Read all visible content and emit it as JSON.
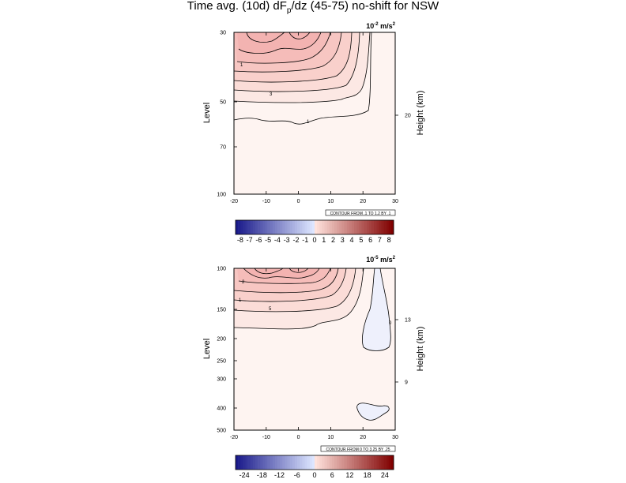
{
  "title_main": "Time avg. (10d) dF",
  "title_sub": "p",
  "title_rest": "/dz (45-75) no-shift for NSW",
  "chart_data": [
    {
      "type": "contour",
      "units_base": "10",
      "units_exp": "-2",
      "units_rest": " m/s",
      "units_sq": "2",
      "ylabel": "Level",
      "y2label": "Height (km)",
      "x_ticks": [
        "-20",
        "-10",
        "0",
        "10",
        "20",
        "30"
      ],
      "y_ticks": [
        "30",
        "50",
        "70",
        "100"
      ],
      "y2_ticks": [
        "20"
      ],
      "contour_info": "CONTOUR FROM .1 TO 1.2 BY .1",
      "contour_labels": [
        "1",
        "3",
        "1"
      ],
      "colorbar_labels": [
        "-8",
        "-7",
        "-6",
        "-5",
        "-4",
        "-3",
        "-2",
        "-1",
        "0",
        "1",
        "2",
        "3",
        "4",
        "5",
        "6",
        "7",
        "8"
      ]
    },
    {
      "type": "contour",
      "units_base": "10",
      "units_exp": "-5",
      "units_rest": " m/s",
      "units_sq": "2",
      "ylabel": "Level",
      "y2label": "Height (km)",
      "x_ticks": [
        "-20",
        "-10",
        "0",
        "10",
        "20",
        "30"
      ],
      "y_ticks": [
        "100",
        "150",
        "200",
        "250",
        "300",
        "400",
        "500"
      ],
      "y2_ticks": [
        "13",
        "9"
      ],
      "contour_info": "CONTOUR FROM 0 TO 3.25 BY .25",
      "contour_labels": [
        "2",
        "1",
        "5",
        "0"
      ],
      "colorbar_labels": [
        "-24",
        "-18",
        "-12",
        "-6",
        "0",
        "6",
        "12",
        "18",
        "24"
      ]
    }
  ],
  "colors": {
    "neg_dark": "#1a1a8a",
    "neg_light": "#dde6ff",
    "pos_light": "#ffe2dc",
    "pos_dark": "#800000",
    "fill_bg": "#fef3f0",
    "fill_max": "#f6c4c4",
    "blob_fill": "#eef0fc"
  }
}
